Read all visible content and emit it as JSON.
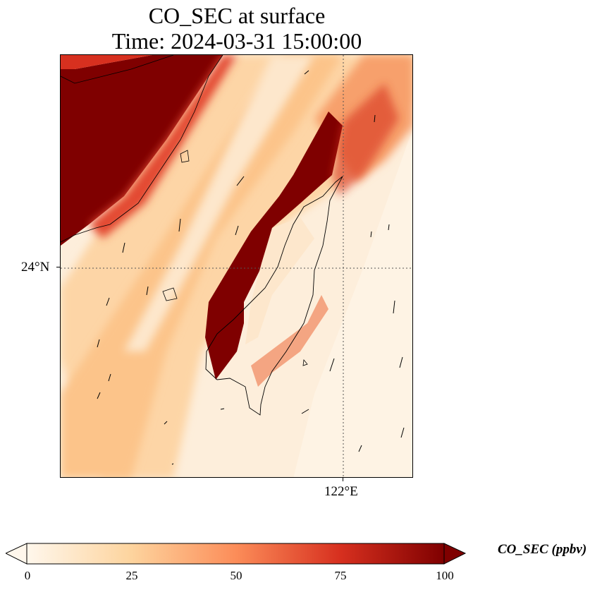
{
  "title": {
    "line1": "CO_SEC at surface",
    "line2": "Time: 2024-03-31 15:00:00"
  },
  "map": {
    "region": "Taiwan and southeast China coast",
    "gridlines": [
      {
        "label": "24°N",
        "kind": "latitude"
      },
      {
        "label": "122°E",
        "kind": "longitude"
      }
    ],
    "field_colormap": "OrRd",
    "overlays": [
      "coastlines",
      "wind-vectors"
    ]
  },
  "colorbar": {
    "label": "CO_SEC (ppbv)",
    "ticks": [
      "0",
      "25",
      "50",
      "75",
      "100"
    ],
    "min": 0,
    "max": 100,
    "extend": "both",
    "colors": [
      "#fff7ec",
      "#fdd49e",
      "#fc8d59",
      "#d7301f",
      "#7f0000"
    ]
  }
}
